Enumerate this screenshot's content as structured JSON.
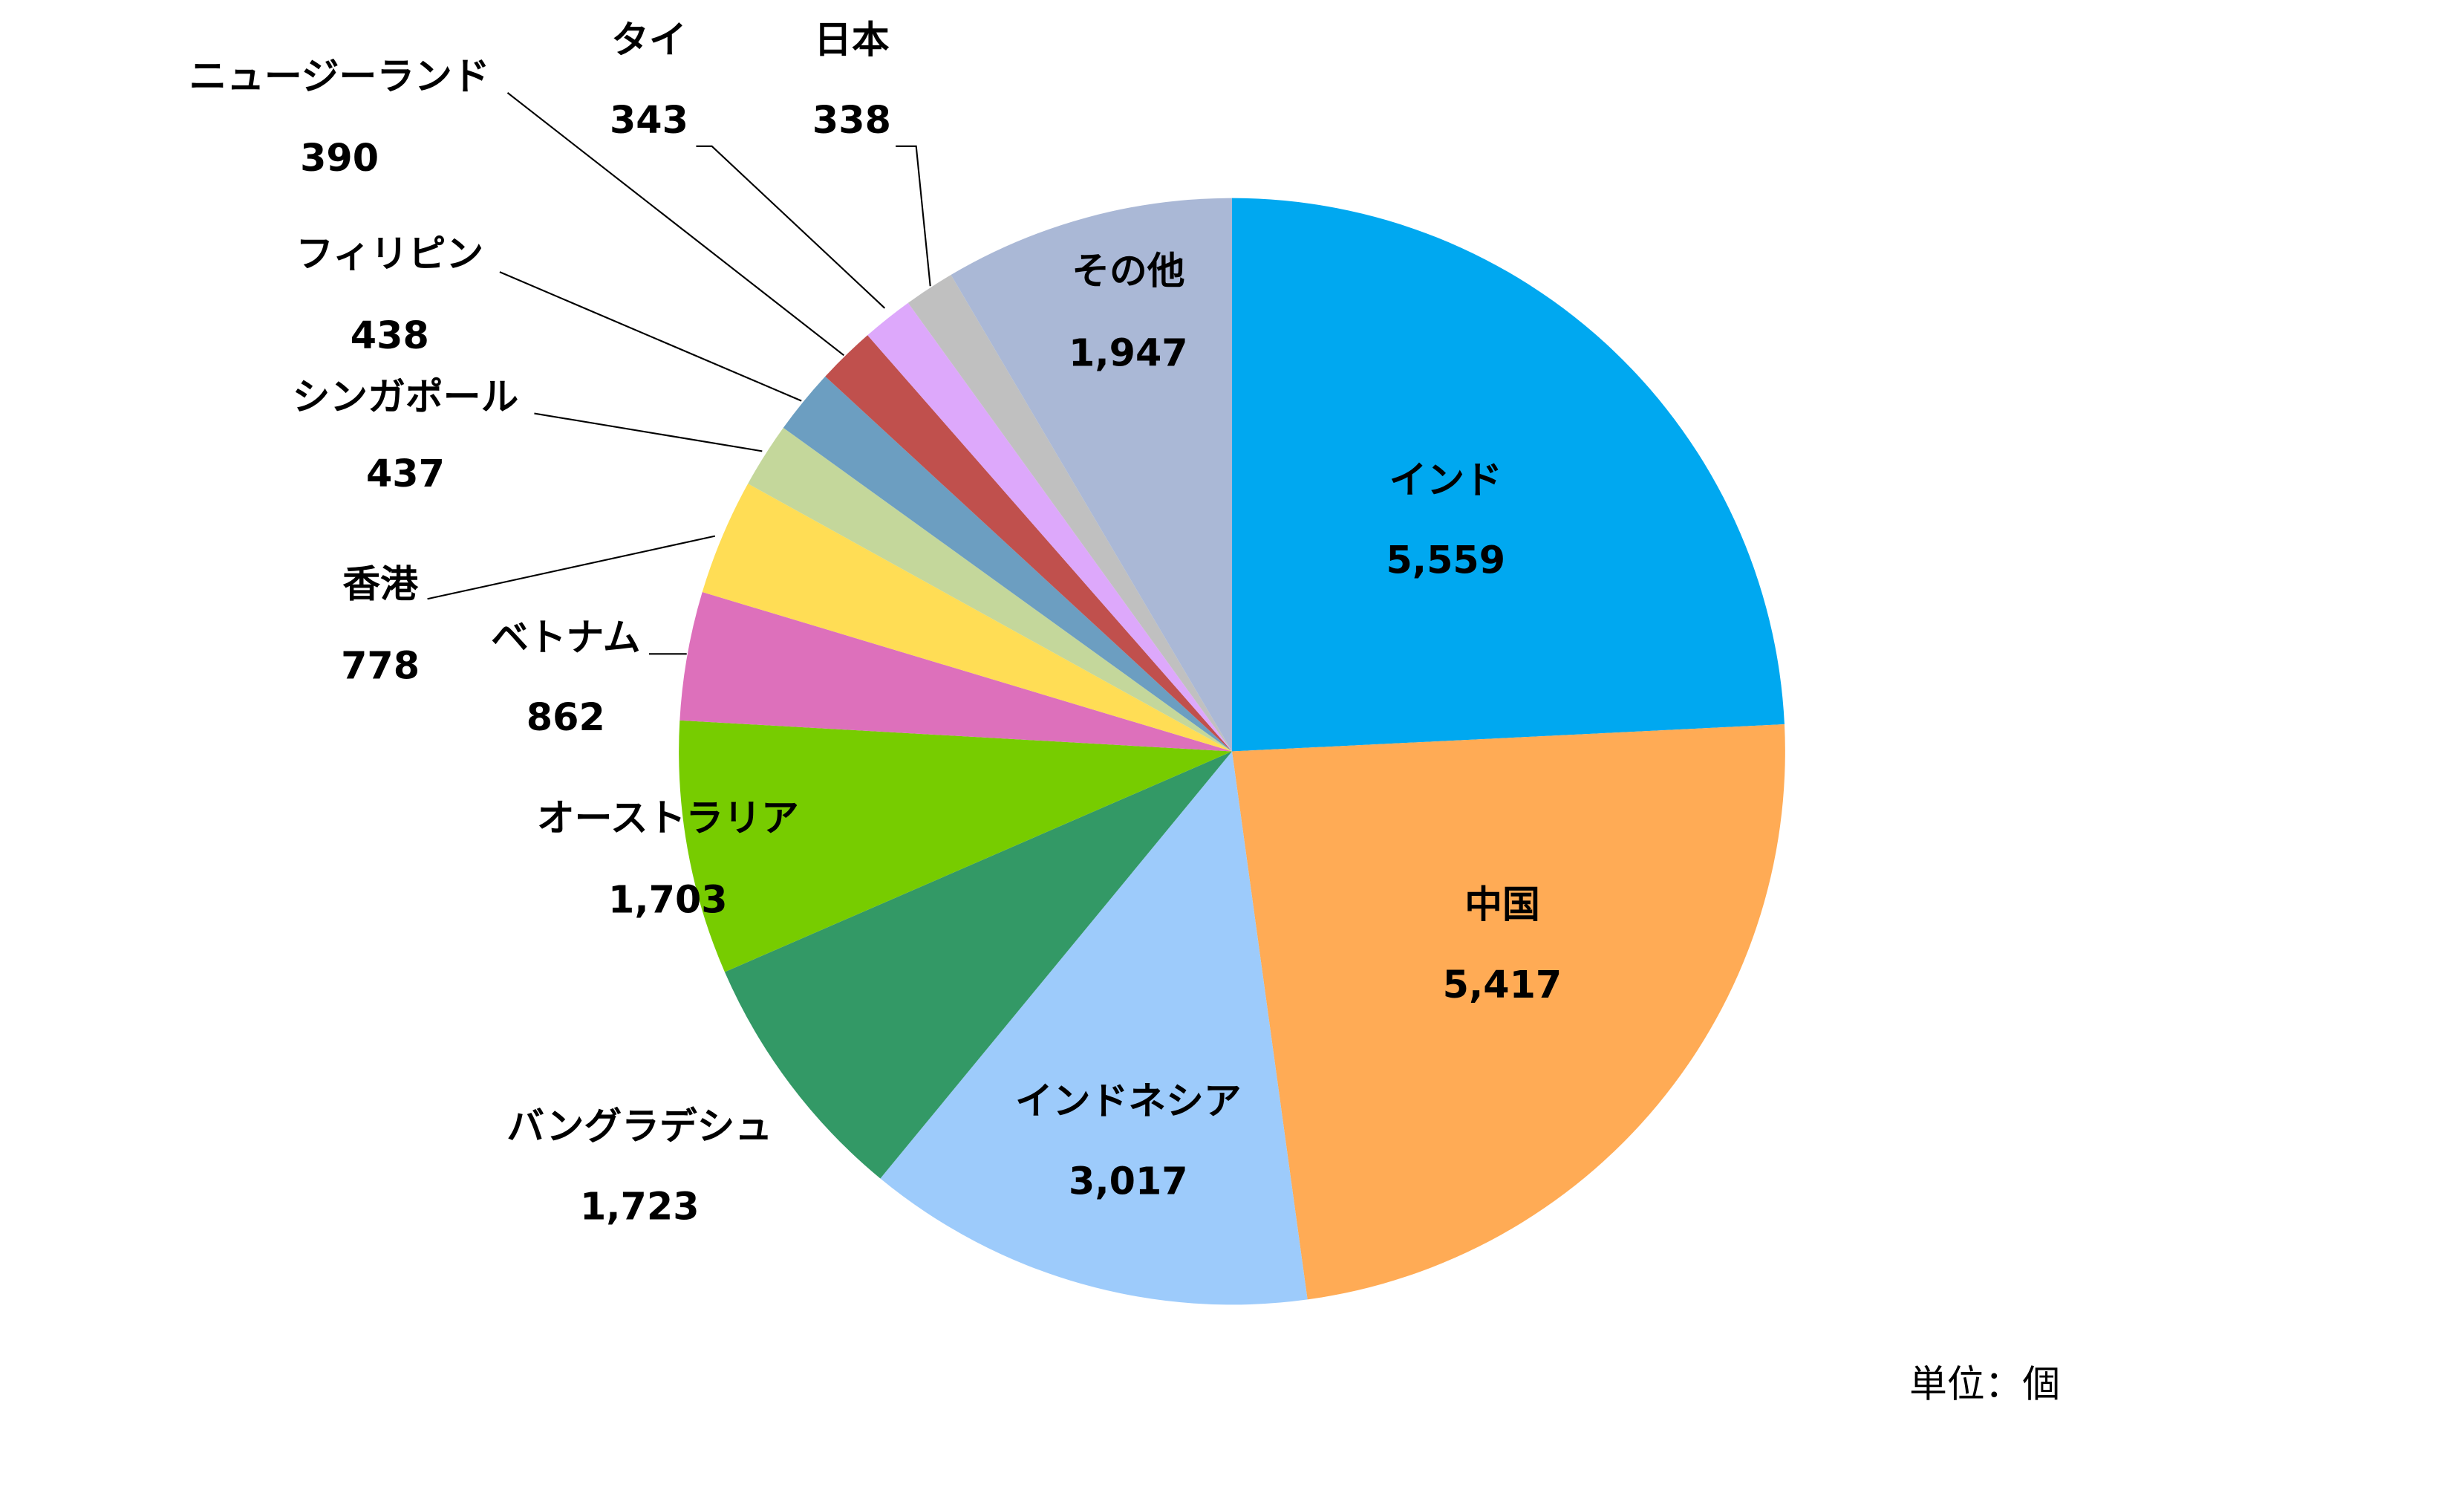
{
  "chart_data": {
    "type": "pie",
    "categories": [
      "インド",
      "中国",
      "インドネシア",
      "バングラデシュ",
      "オーストラリア",
      "ベトナム",
      "香港",
      "シンガポール",
      "フィリピン",
      "ニュージーランド",
      "タイ",
      "日本",
      "その他"
    ],
    "values": [
      5559,
      5417,
      3017,
      1723,
      1703,
      862,
      778,
      437,
      438,
      390,
      343,
      338,
      1947
    ],
    "value_labels": [
      "5,559",
      "5,417",
      "3,017",
      "1,723",
      "1,703",
      "862",
      "778",
      "437",
      "438",
      "390",
      "343",
      "338",
      "1,947"
    ],
    "colors": [
      "#00a8f0",
      "#ffab55",
      "#9dcbfb",
      "#339966",
      "#77cc00",
      "#dd70bb",
      "#ffdd55",
      "#c4d79b",
      "#6c9ec1",
      "#c0504d",
      "#dda8fb",
      "#c0c0c0",
      "#aab8d6"
    ],
    "unit_label": "単位：個"
  }
}
